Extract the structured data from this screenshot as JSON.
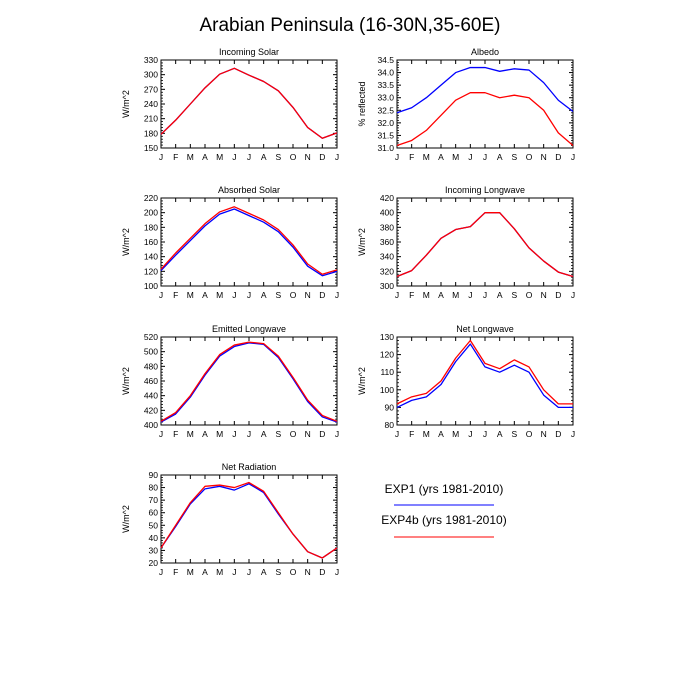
{
  "figure_title": "Arabian Peninsula (16-30N,35-60E)",
  "colors": {
    "exp1": "#0000ff",
    "exp4b": "#ff0000",
    "axis": "#000000"
  },
  "legend": {
    "exp1": "EXP1 (yrs 1981-2010)",
    "exp4b": "EXP4b (yrs 1981-2010)"
  },
  "chart_data": [
    {
      "type": "line",
      "title": "Incoming Solar",
      "ylabel": "W/m^2",
      "categories": [
        "J",
        "F",
        "M",
        "A",
        "M",
        "J",
        "J",
        "A",
        "S",
        "O",
        "N",
        "D",
        "J"
      ],
      "ylim": [
        150,
        330
      ],
      "yticks": [
        150,
        180,
        210,
        240,
        270,
        300,
        330
      ],
      "series": [
        {
          "name": "EXP1 (yrs 1981-2010)",
          "values": [
            178,
            207,
            240,
            273,
            301,
            313,
            299,
            286,
            267,
            233,
            192,
            170,
            181
          ]
        },
        {
          "name": "EXP4b (yrs 1981-2010)",
          "values": [
            178,
            207,
            240,
            273,
            301,
            313,
            299,
            286,
            267,
            233,
            192,
            170,
            181
          ]
        }
      ]
    },
    {
      "type": "line",
      "title": "Albedo",
      "ylabel": "% reflected",
      "categories": [
        "J",
        "F",
        "M",
        "A",
        "M",
        "J",
        "J",
        "A",
        "S",
        "O",
        "N",
        "D",
        "J"
      ],
      "ylim": [
        31.0,
        34.5
      ],
      "yticks": [
        "31.0",
        "31.5",
        "32.0",
        "32.5",
        "33.0",
        "33.5",
        "34.0",
        "34.5"
      ],
      "series": [
        {
          "name": "EXP1 (yrs 1981-2010)",
          "values": [
            32.4,
            32.6,
            33.0,
            33.5,
            34.0,
            34.2,
            34.2,
            34.05,
            34.15,
            34.1,
            33.6,
            32.9,
            32.45
          ]
        },
        {
          "name": "EXP4b (yrs 1981-2010)",
          "values": [
            31.1,
            31.3,
            31.7,
            32.3,
            32.9,
            33.2,
            33.2,
            33.0,
            33.1,
            33.0,
            32.5,
            31.6,
            31.1
          ]
        }
      ]
    },
    {
      "type": "line",
      "title": "Absorbed Solar",
      "ylabel": "W/m^2",
      "categories": [
        "J",
        "F",
        "M",
        "A",
        "M",
        "J",
        "J",
        "A",
        "S",
        "O",
        "N",
        "D",
        "J"
      ],
      "ylim": [
        100,
        220
      ],
      "yticks": [
        100,
        120,
        140,
        160,
        180,
        200,
        220
      ],
      "series": [
        {
          "name": "EXP1 (yrs 1981-2010)",
          "values": [
            121,
            142,
            162,
            182,
            198,
            205,
            196,
            187,
            174,
            153,
            127,
            114,
            120
          ]
        },
        {
          "name": "EXP4b (yrs 1981-2010)",
          "values": [
            123,
            145,
            165,
            185,
            201,
            208,
            199,
            190,
            177,
            156,
            130,
            116,
            122
          ]
        }
      ]
    },
    {
      "type": "line",
      "title": "Incoming Longwave",
      "ylabel": "W/m^2",
      "categories": [
        "J",
        "F",
        "M",
        "A",
        "M",
        "J",
        "J",
        "A",
        "S",
        "O",
        "N",
        "D",
        "J"
      ],
      "ylim": [
        300,
        420
      ],
      "yticks": [
        300,
        320,
        340,
        360,
        380,
        400,
        420
      ],
      "series": [
        {
          "name": "EXP1 (yrs 1981-2010)",
          "values": [
            313,
            321,
            342,
            365,
            377,
            381,
            400,
            400,
            378,
            352,
            334,
            319,
            313
          ]
        },
        {
          "name": "EXP4b (yrs 1981-2010)",
          "values": [
            313,
            321,
            342,
            365,
            377,
            381,
            400,
            400,
            378,
            352,
            334,
            319,
            313
          ]
        }
      ]
    },
    {
      "type": "line",
      "title": "Emitted Longwave",
      "ylabel": "W/m^2",
      "categories": [
        "J",
        "F",
        "M",
        "A",
        "M",
        "J",
        "J",
        "A",
        "S",
        "O",
        "N",
        "D",
        "J"
      ],
      "ylim": [
        400,
        520
      ],
      "yticks": [
        400,
        420,
        440,
        460,
        480,
        500,
        520
      ],
      "series": [
        {
          "name": "EXP1 (yrs 1981-2010)",
          "values": [
            404,
            415,
            438,
            468,
            494,
            507,
            512,
            510,
            492,
            463,
            432,
            411,
            404
          ]
        },
        {
          "name": "EXP4b (yrs 1981-2010)",
          "values": [
            405,
            417,
            440,
            470,
            496,
            509,
            513,
            511,
            494,
            465,
            434,
            413,
            405
          ]
        }
      ]
    },
    {
      "type": "line",
      "title": "Net Longwave",
      "ylabel": "W/m^2",
      "categories": [
        "J",
        "F",
        "M",
        "A",
        "M",
        "J",
        "J",
        "A",
        "S",
        "O",
        "N",
        "D",
        "J"
      ],
      "ylim": [
        80,
        130
      ],
      "yticks": [
        80,
        90,
        100,
        110,
        120,
        130
      ],
      "series": [
        {
          "name": "EXP1 (yrs 1981-2010)",
          "values": [
            90,
            94,
            96,
            103,
            116,
            126,
            113,
            110,
            114,
            110,
            97,
            90,
            90
          ]
        },
        {
          "name": "EXP4b (yrs 1981-2010)",
          "values": [
            92,
            96,
            98,
            105,
            118,
            128,
            115,
            112,
            117,
            113,
            100,
            92,
            92
          ]
        }
      ]
    },
    {
      "type": "line",
      "title": "Net Radiation",
      "ylabel": "W/m^2",
      "categories": [
        "J",
        "F",
        "M",
        "A",
        "M",
        "J",
        "J",
        "A",
        "S",
        "O",
        "N",
        "D",
        "J"
      ],
      "ylim": [
        20,
        90
      ],
      "yticks": [
        20,
        30,
        40,
        50,
        60,
        70,
        80,
        90
      ],
      "series": [
        {
          "name": "EXP1 (yrs 1981-2010)",
          "values": [
            32,
            49,
            67,
            79,
            81,
            78,
            83,
            76,
            59,
            43,
            29,
            24,
            32
          ]
        },
        {
          "name": "EXP4b (yrs 1981-2010)",
          "values": [
            32,
            50,
            68,
            81,
            82,
            80,
            84,
            77,
            60,
            43,
            29,
            24,
            32
          ]
        }
      ]
    }
  ]
}
